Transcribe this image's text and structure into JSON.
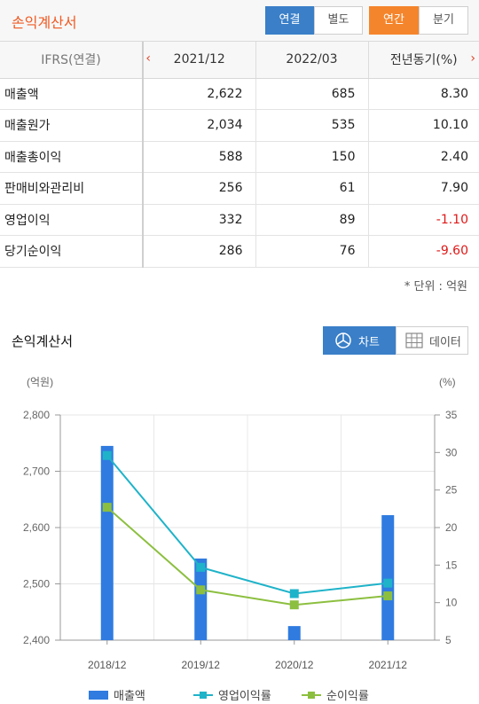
{
  "header": {
    "title": "손익계산서",
    "consolidation_tabs": [
      "연결",
      "별도"
    ],
    "consolidation_selected": "연결",
    "period_tabs": [
      "연간",
      "분기"
    ],
    "period_selected": "연간"
  },
  "table": {
    "columns": [
      "IFRS(연결)",
      "2021/12",
      "2022/03",
      "전년동기(%)"
    ],
    "rows": [
      {
        "label": "매출액",
        "v1": "2,622",
        "v2": "685",
        "v3": "8.30",
        "neg": false
      },
      {
        "label": "매출원가",
        "v1": "2,034",
        "v2": "535",
        "v3": "10.10",
        "neg": false
      },
      {
        "label": "매출총이익",
        "v1": "588",
        "v2": "150",
        "v3": "2.40",
        "neg": false
      },
      {
        "label": "판매비와관리비",
        "v1": "256",
        "v2": "61",
        "v3": "7.90",
        "neg": false
      },
      {
        "label": "영업이익",
        "v1": "332",
        "v2": "89",
        "v3": "-1.10",
        "neg": true
      },
      {
        "label": "당기순이익",
        "v1": "286",
        "v2": "76",
        "v3": "-9.60",
        "neg": true
      }
    ],
    "unit_note": "* 단위 : 억원"
  },
  "chart_section": {
    "title": "손익계산서",
    "toggle_chart": "차트",
    "toggle_data": "데이터"
  },
  "chart_data": {
    "type": "bar",
    "categories": [
      "2018/12",
      "2019/12",
      "2020/12",
      "2021/12"
    ],
    "left_axis": {
      "label": "(억원)",
      "ylim": [
        2400,
        2800
      ],
      "ticks": [
        2400,
        2500,
        2600,
        2700,
        2800
      ]
    },
    "right_axis": {
      "label": "(%)",
      "ylim": [
        5,
        35
      ],
      "ticks": [
        5,
        10,
        15,
        20,
        25,
        30,
        35
      ]
    },
    "series": [
      {
        "name": "매출액",
        "type": "bar",
        "axis": "left",
        "color": "#2f7be0",
        "values": [
          2745,
          2545,
          2425,
          2622
        ]
      },
      {
        "name": "영업이익률",
        "type": "line",
        "axis": "right",
        "color": "#1fb3c9",
        "values": [
          29.6,
          14.7,
          11.2,
          12.6
        ]
      },
      {
        "name": "순이익률",
        "type": "line",
        "axis": "right",
        "color": "#8cbf3f",
        "values": [
          22.7,
          11.7,
          9.7,
          10.9
        ]
      }
    ],
    "grid": true,
    "legend_position": "bottom"
  }
}
